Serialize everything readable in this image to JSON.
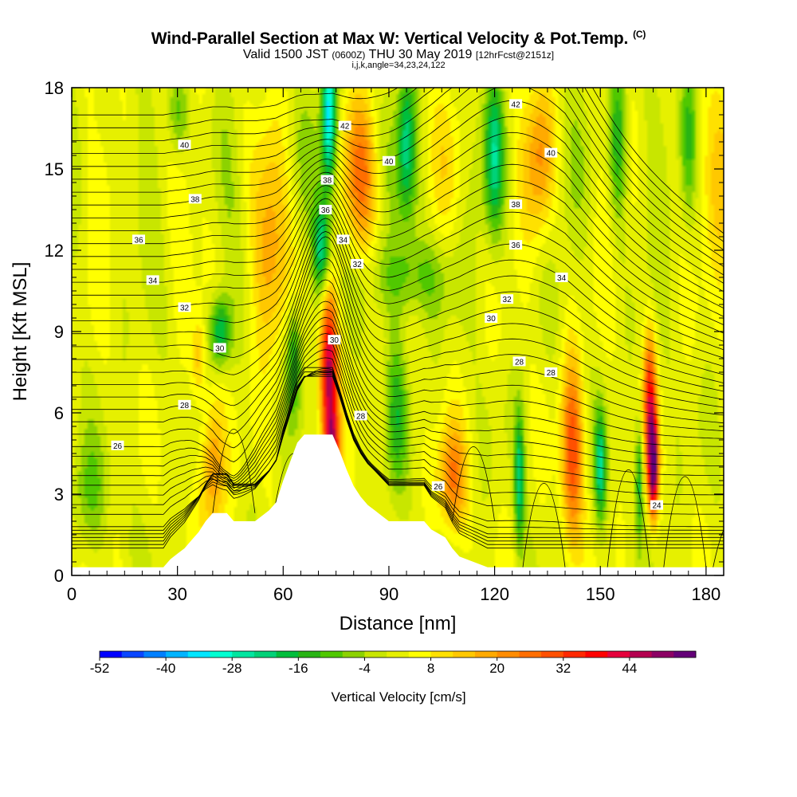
{
  "header": {
    "title": "Wind-Parallel Section at Max W: Vertical Velocity & Pot.Temp.",
    "copyright_mark": "(C)",
    "valid_prefix": "Valid 1500 JST",
    "valid_utc": "(0600Z)",
    "valid_date": "THU 30 May 2019",
    "forecast": "[12hrFcst@2151z]",
    "indices": "i,j,k,angle=34,23,24,122"
  },
  "chart_data": {
    "type": "heatmap",
    "title": "Wind-Parallel Section at Max W: Vertical Velocity & Pot.Temp.",
    "xlabel": "Distance [nm]",
    "ylabel": "Height [Kft MSL]",
    "xlim": [
      0,
      185
    ],
    "ylim": [
      0,
      18
    ],
    "x_ticks": [
      "0",
      "30",
      "60",
      "90",
      "120",
      "150",
      "180"
    ],
    "y_ticks": [
      "0",
      "3",
      "6",
      "9",
      "12",
      "15",
      "18"
    ],
    "colorbar": {
      "label": "Vertical Velocity [cm/s]",
      "tick_labels": [
        "-52",
        "-40",
        "-28",
        "-16",
        "-4",
        "8",
        "20",
        "32",
        "44"
      ],
      "min": -52,
      "max": 52,
      "step": 4,
      "colors": [
        "#0000ff",
        "#0a46ff",
        "#0080ff",
        "#00b4ff",
        "#00e6ff",
        "#00ffd2",
        "#00e6a0",
        "#00d278",
        "#00be3c",
        "#28b414",
        "#50c800",
        "#8cd200",
        "#c8e600",
        "#e6f000",
        "#ffff00",
        "#ffe100",
        "#ffc800",
        "#ffaa00",
        "#ff8c00",
        "#ff6e00",
        "#ff5000",
        "#ff2800",
        "#ff0000",
        "#e6003c",
        "#b40050",
        "#8c0064",
        "#640078"
      ]
    },
    "terrain": [
      [
        0,
        0.3
      ],
      [
        18,
        0.3
      ],
      [
        26,
        0.3
      ],
      [
        28,
        0.6
      ],
      [
        30,
        0.8
      ],
      [
        32,
        1.0
      ],
      [
        34,
        1.3
      ],
      [
        36,
        1.6
      ],
      [
        38,
        2.0
      ],
      [
        40,
        2.3
      ],
      [
        44,
        2.3
      ],
      [
        46,
        2.0
      ],
      [
        52,
        2.0
      ],
      [
        56,
        2.4
      ],
      [
        58,
        2.7
      ],
      [
        60,
        3.5
      ],
      [
        62,
        4.2
      ],
      [
        64,
        4.9
      ],
      [
        66,
        5.2
      ],
      [
        70,
        5.2
      ],
      [
        74,
        5.2
      ],
      [
        76,
        4.6
      ],
      [
        78,
        3.9
      ],
      [
        80,
        3.3
      ],
      [
        82,
        2.9
      ],
      [
        84,
        2.6
      ],
      [
        86,
        2.4
      ],
      [
        88,
        2.2
      ],
      [
        90,
        2.0
      ],
      [
        100,
        2.0
      ],
      [
        102,
        1.7
      ],
      [
        106,
        1.4
      ],
      [
        108,
        1.0
      ],
      [
        110,
        0.7
      ],
      [
        114,
        0.5
      ],
      [
        118,
        0.3
      ],
      [
        185,
        0.3
      ]
    ],
    "w_features": [
      {
        "x": 73,
        "y": 7.5,
        "w": 44,
        "sx": 2.5,
        "sy": 3.2
      },
      {
        "x": 74,
        "y": 4.5,
        "w": 30,
        "sx": 2.0,
        "sy": 1.5
      },
      {
        "x": 165,
        "y": 4.0,
        "w": 50,
        "sx": 1.4,
        "sy": 1.8
      },
      {
        "x": 164,
        "y": 6.5,
        "w": 32,
        "sx": 1.8,
        "sy": 2.5
      },
      {
        "x": 142,
        "y": 4.5,
        "w": 28,
        "sx": 3.0,
        "sy": 3.5
      },
      {
        "x": 40,
        "y": 4.0,
        "w": 20,
        "sx": 3.5,
        "sy": 2.5
      },
      {
        "x": 56,
        "y": 11.5,
        "w": 16,
        "sx": 5.0,
        "sy": 3.5
      },
      {
        "x": 82,
        "y": 14.5,
        "w": 16,
        "sx": 4.5,
        "sy": 3.0
      },
      {
        "x": 108,
        "y": 3.5,
        "w": 22,
        "sx": 4.0,
        "sy": 2.0
      },
      {
        "x": 133,
        "y": 15.5,
        "w": 14,
        "sx": 4.0,
        "sy": 3.0
      },
      {
        "x": 185,
        "y": 15.0,
        "w": 14,
        "sx": 4.0,
        "sy": 3.5
      },
      {
        "x": 36,
        "y": 8.0,
        "w": 12,
        "sx": 2.0,
        "sy": 1.5
      },
      {
        "x": 73,
        "y": 17.0,
        "w": -36,
        "sx": 2.0,
        "sy": 2.5
      },
      {
        "x": 71,
        "y": 12.0,
        "w": -26,
        "sx": 2.5,
        "sy": 1.8
      },
      {
        "x": 42,
        "y": 9.0,
        "w": -24,
        "sx": 3.0,
        "sy": 1.3
      },
      {
        "x": 63,
        "y": 8.0,
        "w": -20,
        "sx": 2.2,
        "sy": 2.0
      },
      {
        "x": 127,
        "y": 3.5,
        "w": -24,
        "sx": 1.4,
        "sy": 2.5
      },
      {
        "x": 150,
        "y": 4.0,
        "w": -24,
        "sx": 1.6,
        "sy": 2.0
      },
      {
        "x": 161,
        "y": 3.5,
        "w": -18,
        "sx": 1.0,
        "sy": 2.0
      },
      {
        "x": 95,
        "y": 16.0,
        "w": -18,
        "sx": 2.5,
        "sy": 3.0
      },
      {
        "x": 120,
        "y": 15.5,
        "w": -18,
        "sx": 2.5,
        "sy": 3.0
      },
      {
        "x": 155,
        "y": 16.0,
        "w": -20,
        "sx": 2.5,
        "sy": 3.0
      },
      {
        "x": 175,
        "y": 16.0,
        "w": -16,
        "sx": 2.5,
        "sy": 3.0
      },
      {
        "x": 30,
        "y": 17.0,
        "w": -12,
        "sx": 3.0,
        "sy": 1.5
      },
      {
        "x": 92,
        "y": 6.0,
        "w": -14,
        "sx": 3.0,
        "sy": 3.0
      },
      {
        "x": 5,
        "y": 3.0,
        "w": -10,
        "sx": 5.0,
        "sy": 2.0
      },
      {
        "x": 95,
        "y": 11.0,
        "w": -12,
        "sx": 12.0,
        "sy": 1.5
      }
    ],
    "theta_labels": [
      {
        "text": "42",
        "x": 77.5,
        "y": 16.6
      },
      {
        "text": "42",
        "x": 126,
        "y": 17.4
      },
      {
        "text": "40",
        "x": 32,
        "y": 15.9
      },
      {
        "text": "40",
        "x": 90,
        "y": 15.3
      },
      {
        "text": "40",
        "x": 136,
        "y": 15.6
      },
      {
        "text": "38",
        "x": 35,
        "y": 13.9
      },
      {
        "text": "38",
        "x": 72.5,
        "y": 14.6
      },
      {
        "text": "38",
        "x": 126,
        "y": 13.7
      },
      {
        "text": "36",
        "x": 19,
        "y": 12.4
      },
      {
        "text": "36",
        "x": 72,
        "y": 13.5
      },
      {
        "text": "36",
        "x": 126,
        "y": 12.2
      },
      {
        "text": "34",
        "x": 23,
        "y": 10.9
      },
      {
        "text": "34",
        "x": 77,
        "y": 12.4
      },
      {
        "text": "34",
        "x": 139,
        "y": 11.0
      },
      {
        "text": "32",
        "x": 32,
        "y": 9.9
      },
      {
        "text": "32",
        "x": 81,
        "y": 11.5
      },
      {
        "text": "32",
        "x": 123.5,
        "y": 10.2
      },
      {
        "text": "30",
        "x": 42,
        "y": 8.4
      },
      {
        "text": "30",
        "x": 119,
        "y": 9.5
      },
      {
        "text": "30",
        "x": 74.5,
        "y": 8.7
      },
      {
        "text": "28",
        "x": 32,
        "y": 6.3
      },
      {
        "text": "28",
        "x": 82,
        "y": 5.9
      },
      {
        "text": "28",
        "x": 127,
        "y": 7.9
      },
      {
        "text": "28",
        "x": 136,
        "y": 7.5
      },
      {
        "text": "26",
        "x": 13,
        "y": 4.8
      },
      {
        "text": "26",
        "x": 104,
        "y": 3.3
      },
      {
        "text": "24",
        "x": 166,
        "y": 2.6
      }
    ]
  }
}
